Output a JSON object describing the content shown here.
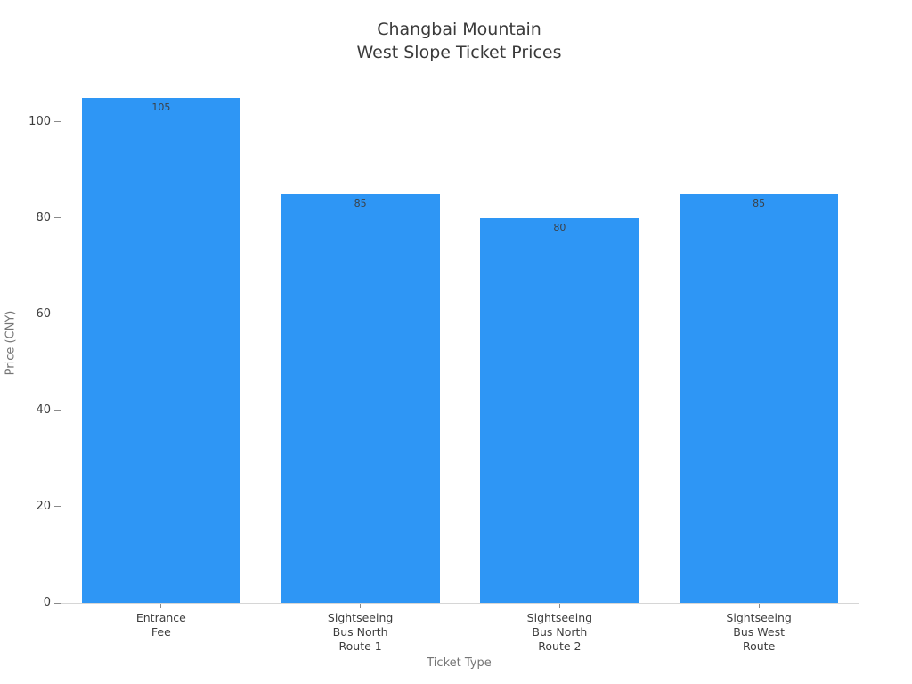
{
  "chart_data": {
    "type": "bar",
    "title": "Changbai Mountain\nWest Slope Ticket Prices",
    "categories": [
      "Entrance\nFee",
      "Sightseeing\nBus North\nRoute 1",
      "Sightseeing\nBus North\nRoute 2",
      "Sightseeing\nBus West\nRoute"
    ],
    "values": [
      105,
      85,
      80,
      85
    ],
    "bar_labels": [
      "105",
      "85",
      "80",
      "85"
    ],
    "xlabel": "Ticket Type",
    "ylabel": "Price (CNY)",
    "yticks": [
      0,
      20,
      40,
      60,
      80,
      100
    ],
    "ylim": [
      0,
      111.2
    ],
    "grid": false,
    "legend": null,
    "bar_color": "#2e96f5",
    "value_label_color": "#3b4148",
    "tick_label_color": "#3d3d3d",
    "axis_title_color": "#757575",
    "title_color": "#3a3a3a",
    "spine_color": "#c3c3c3"
  }
}
